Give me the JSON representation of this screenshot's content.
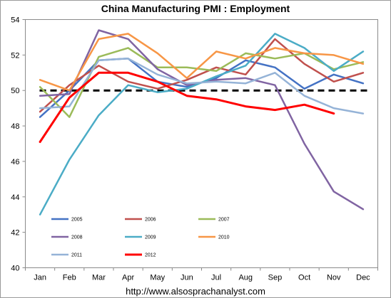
{
  "chart_data": {
    "type": "line",
    "title": "China Manufacturing PMI : Employment",
    "source": "http://www.alsosprachanalyst.com",
    "categories": [
      "Jan",
      "Feb",
      "Mar",
      "Apr",
      "May",
      "Jun",
      "Jul",
      "Aug",
      "Sep",
      "Oct",
      "Nov",
      "Dec"
    ],
    "ylim": [
      40,
      54
    ],
    "yticks": [
      "40",
      "42",
      "44",
      "46",
      "48",
      "50",
      "52",
      "54"
    ],
    "reference_line": {
      "y": 50,
      "style": "dashed",
      "color": "#000000"
    },
    "grid": false,
    "legend_position": "inside-bottom-left",
    "series": [
      {
        "name": "2005",
        "color": "#4472C4",
        "values": [
          48.5,
          50.0,
          51.7,
          51.8,
          50.5,
          50.2,
          50.7,
          51.7,
          51.3,
          50.1,
          50.9,
          50.4
        ]
      },
      {
        "name": "2006",
        "color": "#C0504D",
        "values": [
          48.8,
          50.3,
          51.4,
          50.5,
          50.1,
          50.6,
          51.3,
          50.9,
          52.9,
          51.5,
          50.5,
          51.0
        ]
      },
      {
        "name": "2007",
        "color": "#9BBB59",
        "values": [
          50.2,
          48.5,
          51.9,
          52.4,
          51.3,
          51.3,
          51.1,
          52.1,
          51.8,
          52.1,
          51.2,
          51.6
        ]
      },
      {
        "name": "2008",
        "color": "#8064A2",
        "values": [
          49.7,
          49.8,
          53.4,
          52.9,
          51.2,
          50.3,
          50.6,
          50.7,
          50.3,
          47.0,
          44.3,
          43.3
        ]
      },
      {
        "name": "2009",
        "color": "#4BACC6",
        "values": [
          43.0,
          46.1,
          48.6,
          50.3,
          49.9,
          50.1,
          50.8,
          51.4,
          53.2,
          52.4,
          51.1,
          52.2
        ]
      },
      {
        "name": "2010",
        "color": "#F79646",
        "values": [
          50.6,
          50.0,
          52.9,
          53.2,
          52.1,
          50.7,
          52.2,
          51.8,
          52.4,
          52.1,
          52.0,
          51.5
        ]
      },
      {
        "name": "2011",
        "color": "#95B3D7",
        "values": [
          49.0,
          49.1,
          51.7,
          51.8,
          50.9,
          50.4,
          50.5,
          50.4,
          51.0,
          49.7,
          49.0,
          48.7
        ]
      },
      {
        "name": "2012",
        "color": "#FF0000",
        "values": [
          47.1,
          49.6,
          51.0,
          51.0,
          50.5,
          49.7,
          49.5,
          49.1,
          48.9,
          49.2,
          48.7,
          null
        ]
      }
    ]
  }
}
